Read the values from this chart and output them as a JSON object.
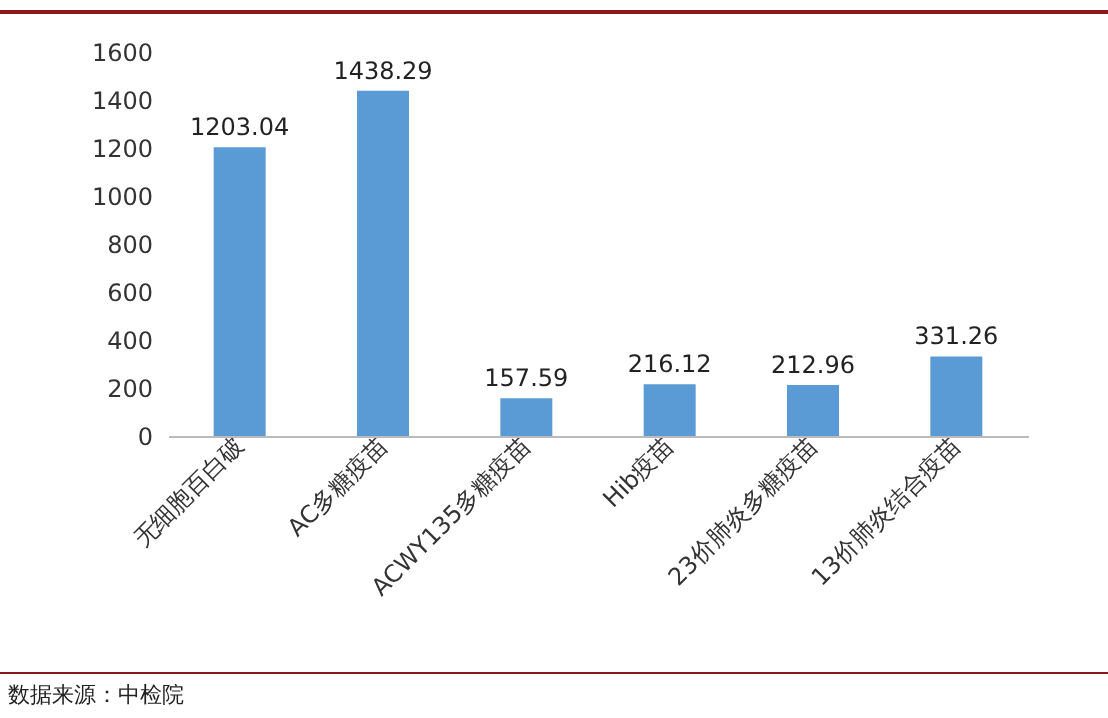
{
  "chart_data": {
    "type": "bar",
    "categories": [
      "无细胞百白破",
      "AC多糖疫苗",
      "ACWY135多糖疫苗",
      "Hib疫苗",
      "23价肺炎多糖疫苗",
      "13价肺炎结合疫苗"
    ],
    "values": [
      1203.04,
      1438.29,
      157.59,
      216.12,
      212.96,
      331.26
    ],
    "color": "#5b9bd5",
    "ylim": [
      0,
      1600
    ],
    "yticks": [
      0,
      200,
      400,
      600,
      800,
      1000,
      1200,
      1400,
      1600
    ],
    "data_labels": true,
    "grid": false,
    "annotations": [
      "数据来源：中检院"
    ]
  }
}
